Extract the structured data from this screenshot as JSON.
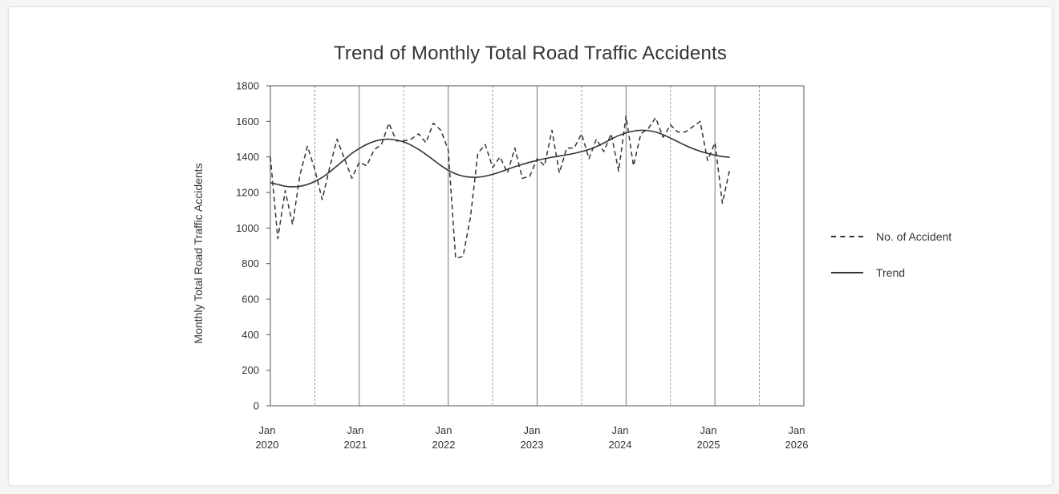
{
  "chart_data": {
    "type": "line",
    "title": "Trend of Monthly Total Road Traffic Accidents",
    "xlabel": "",
    "ylabel": "Monthly Total Road Traffic Accidents",
    "ylim": [
      0,
      1800
    ],
    "yticks": [
      0,
      200,
      400,
      600,
      800,
      1000,
      1200,
      1400,
      1600,
      1800
    ],
    "xlim": [
      "2020-01",
      "2026-01"
    ],
    "xticks": [
      {
        "line1": "Jan",
        "line2": "2020"
      },
      {
        "line1": "Jan",
        "line2": "2021"
      },
      {
        "line1": "Jan",
        "line2": "2022"
      },
      {
        "line1": "Jan",
        "line2": "2023"
      },
      {
        "line1": "Jan",
        "line2": "2024"
      },
      {
        "line1": "Jan",
        "line2": "2025"
      },
      {
        "line1": "Jan",
        "line2": "2026"
      }
    ],
    "grid": "vertical lines at each Jan (solid) and Jul (dashed)",
    "legend_position": "right",
    "series": [
      {
        "name": "No. of Accident",
        "style": "dashed",
        "color": "#333333",
        "x": [
          "2020-01",
          "2020-02",
          "2020-03",
          "2020-04",
          "2020-05",
          "2020-06",
          "2020-07",
          "2020-08",
          "2020-09",
          "2020-10",
          "2020-11",
          "2020-12",
          "2021-01",
          "2021-02",
          "2021-03",
          "2021-04",
          "2021-05",
          "2021-06",
          "2021-07",
          "2021-08",
          "2021-09",
          "2021-10",
          "2021-11",
          "2021-12",
          "2022-01",
          "2022-02",
          "2022-03",
          "2022-04",
          "2022-05",
          "2022-06",
          "2022-07",
          "2022-08",
          "2022-09",
          "2022-10",
          "2022-11",
          "2022-12",
          "2023-01",
          "2023-02",
          "2023-03",
          "2023-04",
          "2023-05",
          "2023-06",
          "2023-07",
          "2023-08",
          "2023-09",
          "2023-10",
          "2023-11",
          "2023-12",
          "2024-01",
          "2024-02",
          "2024-03",
          "2024-04",
          "2024-05",
          "2024-06",
          "2024-07",
          "2024-08",
          "2024-09",
          "2024-10",
          "2024-11",
          "2024-12",
          "2025-01",
          "2025-02",
          "2025-03"
        ],
        "values": [
          1400,
          940,
          1210,
          1020,
          1300,
          1460,
          1330,
          1160,
          1340,
          1500,
          1390,
          1280,
          1370,
          1350,
          1440,
          1470,
          1590,
          1490,
          1490,
          1500,
          1530,
          1480,
          1590,
          1550,
          1440,
          830,
          840,
          1060,
          1420,
          1470,
          1340,
          1400,
          1310,
          1450,
          1280,
          1290,
          1390,
          1350,
          1550,
          1310,
          1450,
          1450,
          1530,
          1390,
          1500,
          1430,
          1530,
          1320,
          1630,
          1350,
          1530,
          1560,
          1620,
          1510,
          1580,
          1540,
          1540,
          1570,
          1600,
          1380,
          1480,
          1140,
          1330
        ]
      },
      {
        "name": "Trend",
        "style": "solid",
        "color": "#333333",
        "x": [
          "2020-01",
          "2020-02",
          "2020-03",
          "2020-04",
          "2020-05",
          "2020-06",
          "2020-07",
          "2020-08",
          "2020-09",
          "2020-10",
          "2020-11",
          "2020-12",
          "2021-01",
          "2021-02",
          "2021-03",
          "2021-04",
          "2021-05",
          "2021-06",
          "2021-07",
          "2021-08",
          "2021-09",
          "2021-10",
          "2021-11",
          "2021-12",
          "2022-01",
          "2022-02",
          "2022-03",
          "2022-04",
          "2022-05",
          "2022-06",
          "2022-07",
          "2022-08",
          "2022-09",
          "2022-10",
          "2022-11",
          "2022-12",
          "2023-01",
          "2023-02",
          "2023-03",
          "2023-04",
          "2023-05",
          "2023-06",
          "2023-07",
          "2023-08",
          "2023-09",
          "2023-10",
          "2023-11",
          "2023-12",
          "2024-01",
          "2024-02",
          "2024-03",
          "2024-04",
          "2024-05",
          "2024-06",
          "2024-07",
          "2024-08",
          "2024-09",
          "2024-10",
          "2024-11",
          "2024-12",
          "2025-01",
          "2025-02",
          "2025-03"
        ],
        "values": [
          1255,
          1245,
          1235,
          1232,
          1235,
          1245,
          1262,
          1285,
          1315,
          1350,
          1385,
          1420,
          1447,
          1470,
          1487,
          1497,
          1500,
          1495,
          1484,
          1466,
          1442,
          1414,
          1383,
          1352,
          1325,
          1305,
          1292,
          1286,
          1286,
          1292,
          1302,
          1315,
          1330,
          1345,
          1358,
          1370,
          1380,
          1390,
          1398,
          1405,
          1412,
          1420,
          1430,
          1442,
          1458,
          1478,
          1500,
          1520,
          1535,
          1545,
          1550,
          1548,
          1540,
          1525,
          1506,
          1485,
          1465,
          1447,
          1432,
          1420,
          1410,
          1402,
          1398
        ]
      }
    ]
  }
}
